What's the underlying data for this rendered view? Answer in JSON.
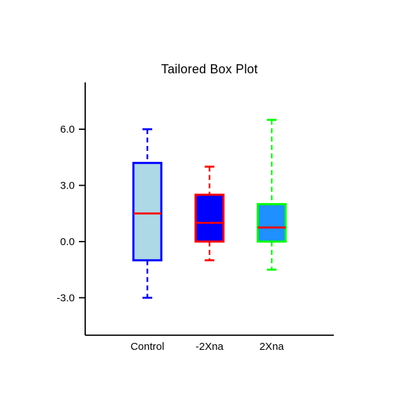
{
  "window": {
    "background": "#FFFFFF"
  },
  "chart_data": {
    "type": "boxplot",
    "title": "Tailored Box Plot",
    "categories": [
      "Control",
      "-2Xna",
      "2Xna"
    ],
    "xlabel": "",
    "ylabel": "",
    "ylim": [
      -5.0,
      8.5
    ],
    "grid": false,
    "axis_color": "#000000",
    "y_ticks": [
      {
        "value": 6.0,
        "label": "6.0"
      },
      {
        "value": 3.0,
        "label": "3.0"
      },
      {
        "value": 0.0,
        "label": "0.0"
      },
      {
        "value": -3.0,
        "label": "-3.0"
      }
    ],
    "boxes": [
      {
        "category": "Control",
        "whisker_low": -3.0,
        "q1": -1.0,
        "median": 1.5,
        "q3": 4.2,
        "whisker_high": 6.0,
        "fill_color": "#ADD8E6",
        "border_color": "#0000FF",
        "median_color": "#FF0000"
      },
      {
        "category": "-2Xna",
        "whisker_low": -1.0,
        "q1": 0.0,
        "median": 1.0,
        "q3": 2.5,
        "whisker_high": 4.0,
        "fill_color": "#0000FF",
        "border_color": "#FF0000",
        "median_color": "#FF0000"
      },
      {
        "category": "2Xna",
        "whisker_low": -1.5,
        "q1": 0.0,
        "median": 0.75,
        "q3": 2.0,
        "whisker_high": 6.5,
        "fill_color": "#1E90FF",
        "border_color": "#00FF00",
        "median_color": "#FF0000"
      }
    ]
  }
}
